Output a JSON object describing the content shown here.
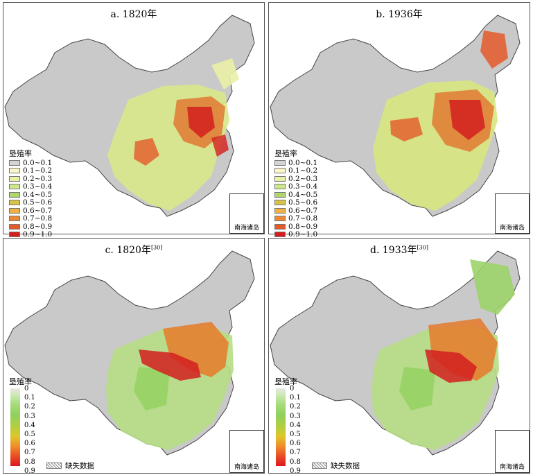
{
  "legend_title": "垦殖率",
  "legend_ranges": [
    "0.0~0.1",
    "0.1~0.2",
    "0.2~0.3",
    "0.3~0.4",
    "0.4~0.5",
    "0.5~0.6",
    "0.6~0.7",
    "0.7~0.8",
    "0.8~0.9",
    "0.9~1.0"
  ],
  "legend_range_colors": [
    "#d4d4d4",
    "#fbf6c8",
    "#eaf0a6",
    "#cde68a",
    "#aed66a",
    "#d7c24a",
    "#f0b043",
    "#ea8a36",
    "#e45a2a",
    "#d41e1e"
  ],
  "gradient_labels": [
    "0",
    "0.1",
    "0.2",
    "0.3",
    "0.4",
    "0.5",
    "0.6",
    "0.7",
    "0.8",
    "0.9"
  ],
  "missing_label": "缺失数据",
  "inset_label": "南海诸岛",
  "panels": [
    {
      "title": "a. 1820年",
      "ref": ""
    },
    {
      "title": "b. 1936年",
      "ref": ""
    },
    {
      "title": "c. 1820年",
      "ref": "[30]"
    },
    {
      "title": "d. 1933年",
      "ref": "[30]"
    }
  ],
  "colors": {
    "land_gray": "#c9c9c9",
    "border": "#555555"
  }
}
